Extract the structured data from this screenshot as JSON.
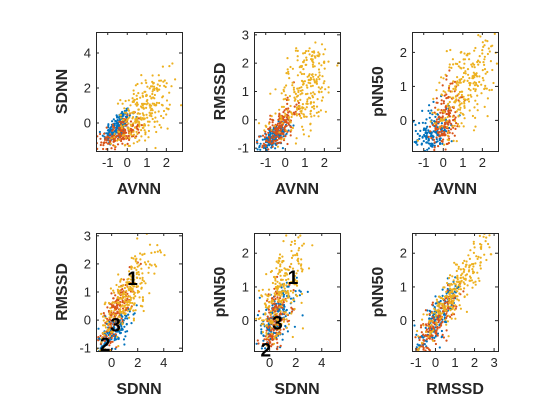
{
  "chart_data": [
    {
      "type": "scatter",
      "xlabel": "AVNN",
      "ylabel": "SDNN",
      "xlim": [
        -1.6,
        2.8
      ],
      "ylim": [
        -1.6,
        5.2
      ],
      "xticks": [
        -1,
        0,
        1,
        2
      ],
      "yticks": [
        0,
        2,
        4
      ],
      "annotations": [],
      "clusters": [
        {
          "series": 0,
          "n": 170,
          "cx": -0.5,
          "cy": -0.2,
          "sx": 0.35,
          "sy": 0.5,
          "corr": 0.6
        },
        {
          "series": 1,
          "n": 170,
          "cx": -0.3,
          "cy": -0.6,
          "sx": 0.5,
          "sy": 0.45,
          "corr": 0.5
        },
        {
          "series": 2,
          "n": 260,
          "cx": 0.8,
          "cy": 0.6,
          "sx": 0.7,
          "sy": 1.0,
          "corr": 0.5
        }
      ]
    },
    {
      "type": "scatter",
      "xlabel": "AVNN",
      "ylabel": "RMSSD",
      "xlim": [
        -1.6,
        2.8
      ],
      "ylim": [
        -1.1,
        3.1
      ],
      "xticks": [
        -1,
        0,
        1,
        2
      ],
      "yticks": [
        -1,
        0,
        1,
        2,
        3
      ],
      "annotations": [],
      "clusters": [
        {
          "series": 0,
          "n": 170,
          "cx": -0.6,
          "cy": -0.6,
          "sx": 0.35,
          "sy": 0.25,
          "corr": 0.6
        },
        {
          "series": 1,
          "n": 170,
          "cx": -0.3,
          "cy": -0.3,
          "sx": 0.45,
          "sy": 0.45,
          "corr": 0.7
        },
        {
          "series": 2,
          "n": 260,
          "cx": 1.0,
          "cy": 1.1,
          "sx": 0.75,
          "sy": 0.9,
          "corr": 0.5
        }
      ]
    },
    {
      "type": "scatter",
      "xlabel": "AVNN",
      "ylabel": "pNN50",
      "xlim": [
        -1.6,
        2.8
      ],
      "ylim": [
        -0.9,
        2.6
      ],
      "xticks": [
        -1,
        0,
        1,
        2
      ],
      "yticks": [
        0,
        1,
        2
      ],
      "annotations": [],
      "clusters": [
        {
          "series": 0,
          "n": 170,
          "cx": -0.6,
          "cy": -0.4,
          "sx": 0.45,
          "sy": 0.4,
          "corr": 0.3
        },
        {
          "series": 1,
          "n": 170,
          "cx": 0.1,
          "cy": 0.0,
          "sx": 0.35,
          "sy": 0.55,
          "corr": 0.4
        },
        {
          "series": 2,
          "n": 260,
          "cx": 1.1,
          "cy": 1.0,
          "sx": 0.8,
          "sy": 0.8,
          "corr": 0.6
        }
      ]
    },
    {
      "type": "scatter",
      "xlabel": "SDNN",
      "ylabel": "RMSSD",
      "xlim": [
        -1.2,
        5.4
      ],
      "ylim": [
        -1.1,
        3.1
      ],
      "xticks": [
        0,
        2,
        4
      ],
      "yticks": [
        -1,
        0,
        1,
        2,
        3
      ],
      "annotations": [
        {
          "text": "1",
          "x": 1.6,
          "y": 1.5
        },
        {
          "text": "2",
          "x": -0.5,
          "y": -0.85
        },
        {
          "text": "3",
          "x": 0.3,
          "y": -0.15
        }
      ],
      "clusters": [
        {
          "series": 0,
          "n": 170,
          "cx": 0.2,
          "cy": -0.4,
          "sx": 0.6,
          "sy": 0.35,
          "corr": 0.6
        },
        {
          "series": 1,
          "n": 170,
          "cx": 0.3,
          "cy": 0.2,
          "sx": 0.7,
          "sy": 0.7,
          "corr": 0.8
        },
        {
          "series": 2,
          "n": 260,
          "cx": 1.2,
          "cy": 0.9,
          "sx": 1.1,
          "sy": 0.9,
          "corr": 0.8
        }
      ]
    },
    {
      "type": "scatter",
      "xlabel": "SDNN",
      "ylabel": "pNN50",
      "xlim": [
        -1.2,
        5.4
      ],
      "ylim": [
        -0.9,
        2.6
      ],
      "xticks": [
        0,
        2,
        4
      ],
      "yticks": [
        0,
        1,
        2
      ],
      "annotations": [
        {
          "text": "1",
          "x": 1.8,
          "y": 1.3
        },
        {
          "text": "2",
          "x": -0.3,
          "y": -0.85
        },
        {
          "text": "3",
          "x": 0.6,
          "y": -0.05
        }
      ],
      "clusters": [
        {
          "series": 0,
          "n": 170,
          "cx": 0.5,
          "cy": 0.1,
          "sx": 0.8,
          "sy": 0.45,
          "corr": 0.5
        },
        {
          "series": 1,
          "n": 170,
          "cx": 0.4,
          "cy": 0.0,
          "sx": 0.6,
          "sy": 0.55,
          "corr": 0.5
        },
        {
          "series": 2,
          "n": 260,
          "cx": 0.9,
          "cy": 0.8,
          "sx": 1.0,
          "sy": 0.8,
          "corr": 0.7
        }
      ]
    },
    {
      "type": "scatter",
      "xlabel": "RMSSD",
      "ylabel": "pNN50",
      "xlim": [
        -1.2,
        3.2
      ],
      "ylim": [
        -0.9,
        2.6
      ],
      "xticks": [
        -1,
        0,
        1,
        2,
        3
      ],
      "yticks": [
        0,
        1,
        2
      ],
      "annotations": [],
      "clusters": [
        {
          "series": 0,
          "n": 170,
          "cx": 0.1,
          "cy": 0.1,
          "sx": 0.6,
          "sy": 0.55,
          "corr": 0.85
        },
        {
          "series": 1,
          "n": 170,
          "cx": 0.0,
          "cy": -0.1,
          "sx": 0.55,
          "sy": 0.5,
          "corr": 0.85
        },
        {
          "series": 2,
          "n": 260,
          "cx": 1.0,
          "cy": 0.9,
          "sx": 0.9,
          "sy": 0.8,
          "corr": 0.9
        }
      ]
    }
  ],
  "series_colors": [
    "#0072BD",
    "#D95319",
    "#EDB120"
  ],
  "grid": false,
  "legend": "none"
}
